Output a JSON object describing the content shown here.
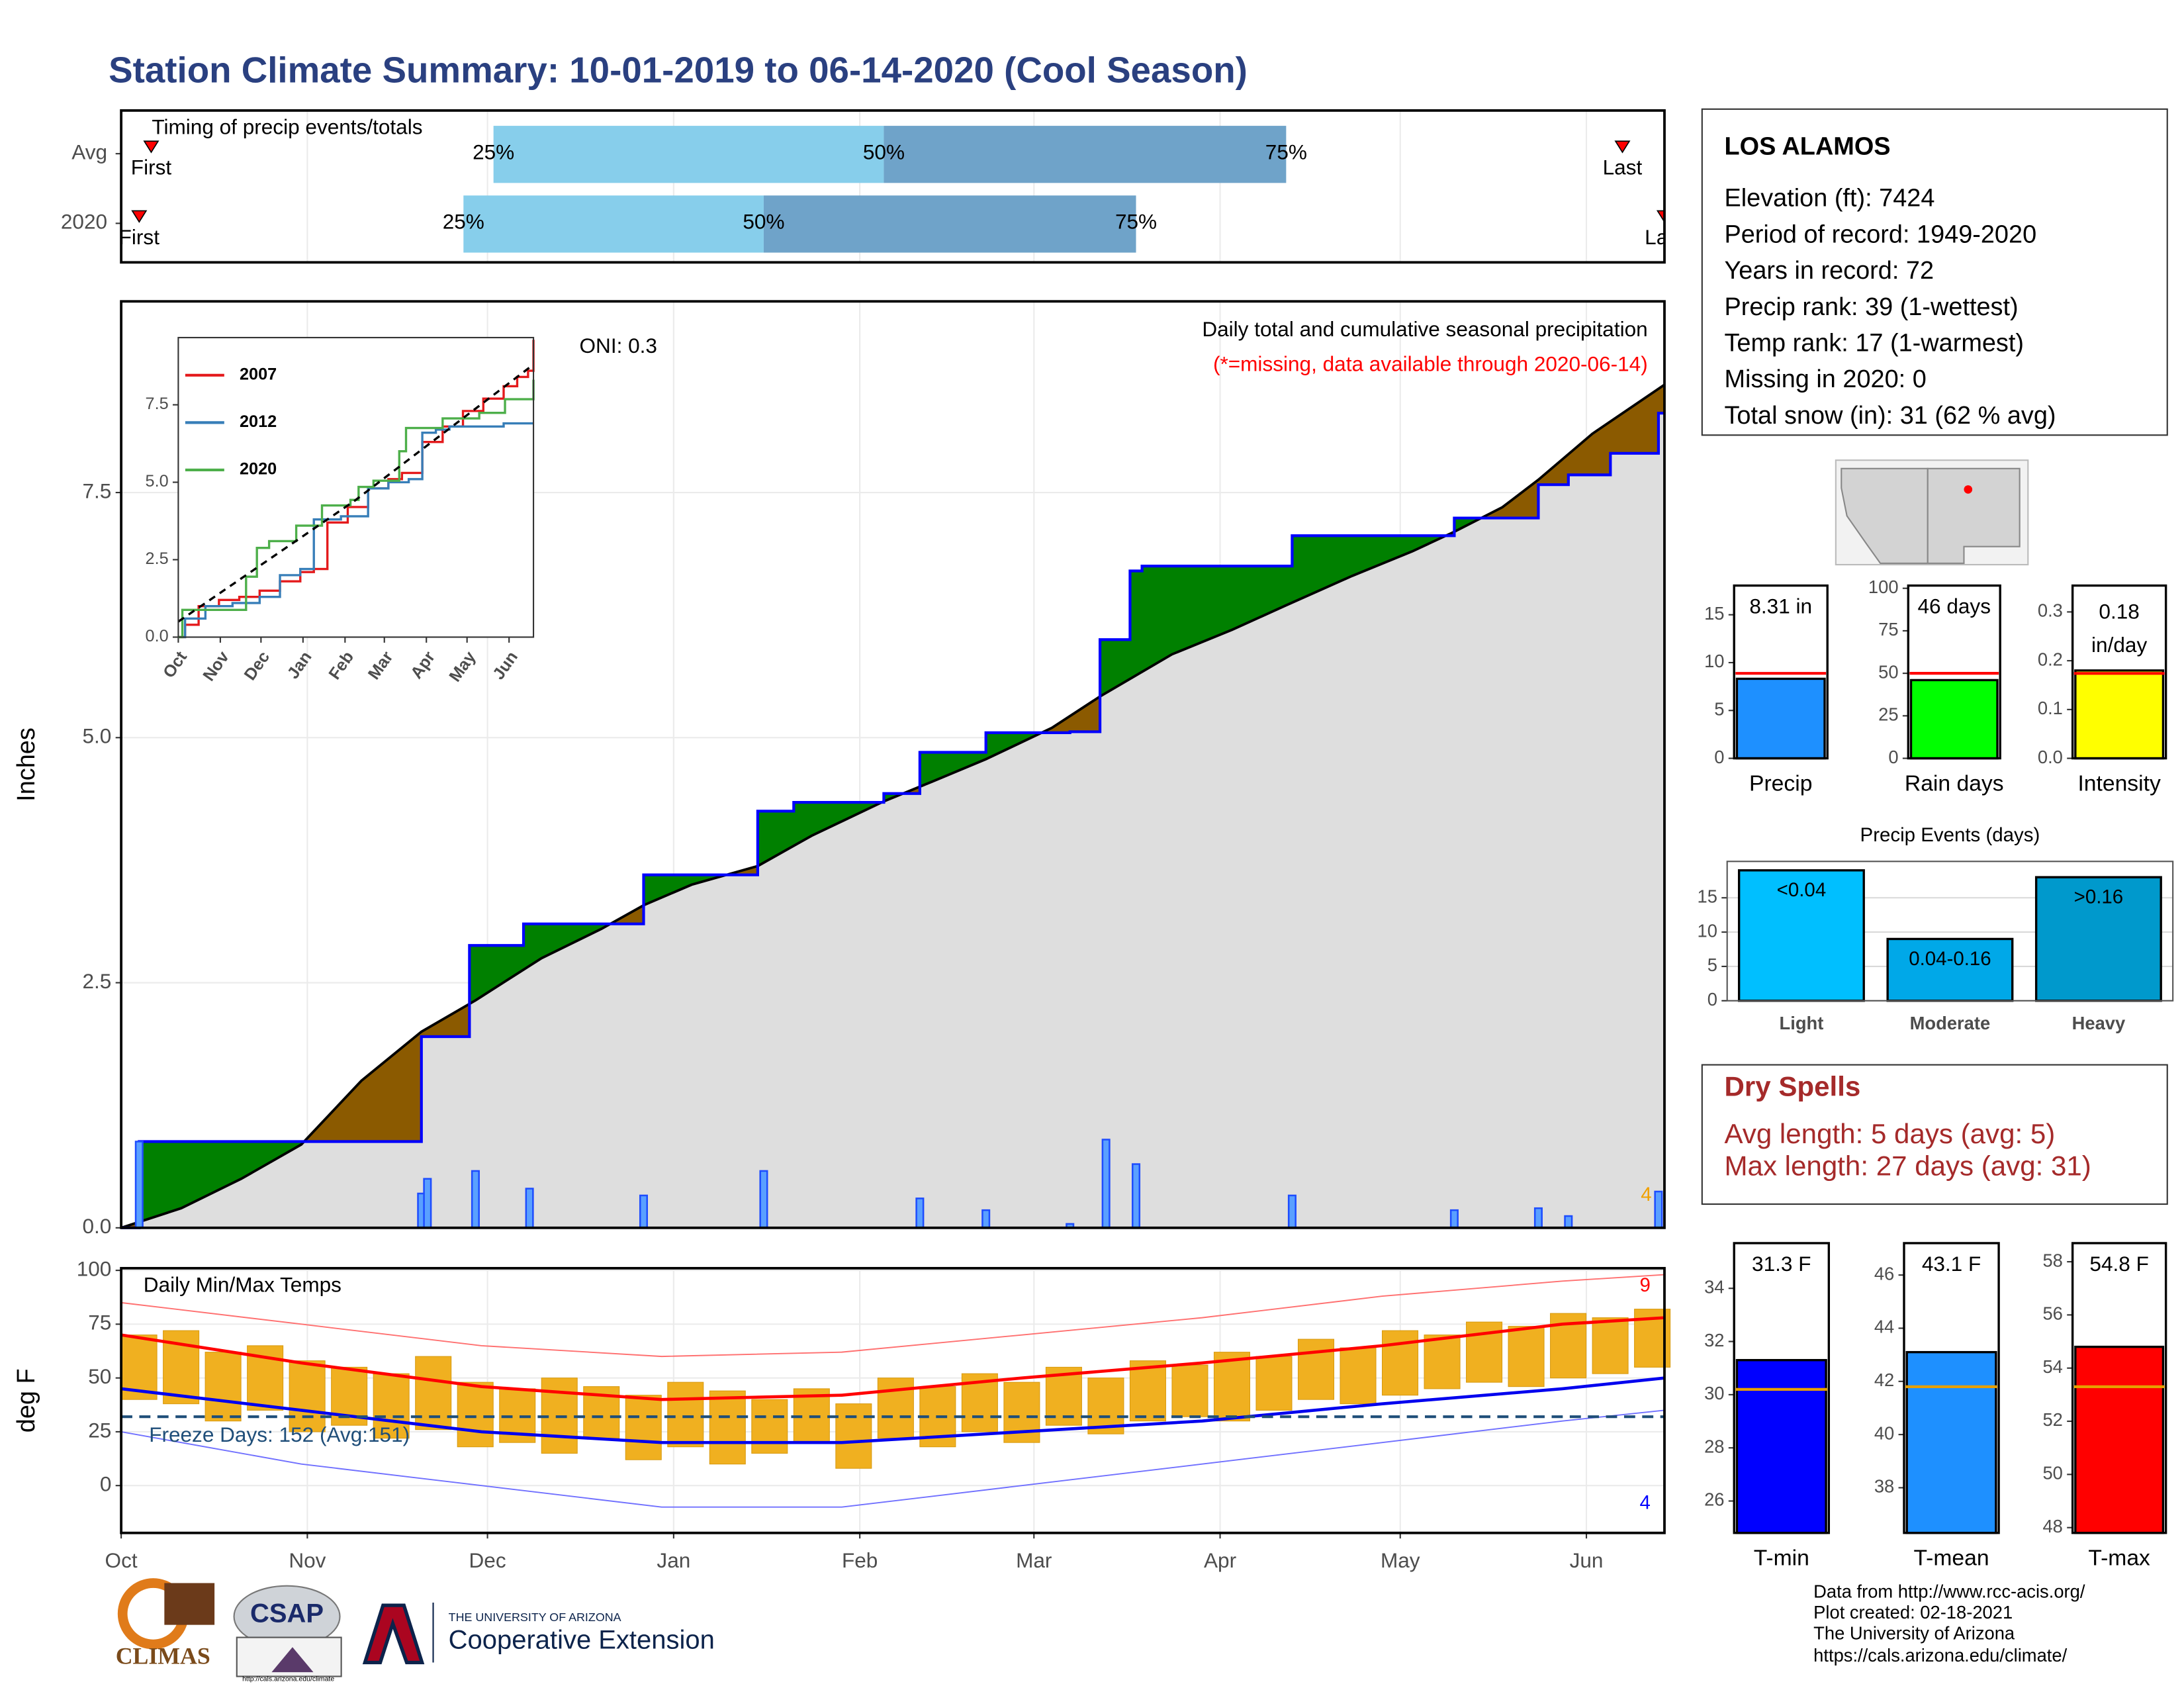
{
  "title": "Station Climate Summary: 10-01-2019 to 06-14-2020 (Cool Season)",
  "station": {
    "name": "LOS ALAMOS",
    "lines": [
      "Elevation (ft): 7424",
      "Period of record: 1949-2020",
      "Years in record: 72",
      "Precip rank: 39 (1-wettest)",
      "Temp rank: 17 (1-warmest)",
      "Missing in 2020: 0",
      "Total snow (in): 31 (62 % avg)"
    ]
  },
  "dry_spells": {
    "title": "Dry Spells",
    "lines": [
      "Avg length: 5 days (avg: 5)",
      "Max length: 27 days (avg: 31)"
    ]
  },
  "credits": [
    "Data from http://www.rcc-acis.org/",
    "Plot created: 02-18-2021",
    "The University of Arizona",
    "https://cals.arizona.edu/climate/"
  ],
  "logos": {
    "climas": "CLIMAS",
    "csap": "CSAP",
    "csap_url": "http://cals.arizona.edu/climate",
    "ua": "THE UNIVERSITY OF ARIZONA",
    "extension": "Cooperative Extension"
  },
  "chart_data": [
    {
      "type": "timeline",
      "title": "Timing of precip events/totals",
      "categories": [
        "Avg",
        "2020"
      ],
      "quantiles": [
        [
          62,
          127,
          194
        ],
        [
          57,
          107,
          169
        ]
      ],
      "quantile_labels": [
        "25%",
        "50%",
        "75%"
      ],
      "first": [
        5,
        3
      ],
      "last": [
        250,
        257
      ],
      "first_label": "First",
      "last_label": "Last",
      "colors": [
        "#87ceeb",
        "#6fa3c9"
      ],
      "marker_color": "#ff0000",
      "xlim": [
        0,
        257
      ]
    },
    {
      "type": "step",
      "title": "Daily total and cumulative seasonal precipitation",
      "subtitle": "(*=missing, data available through 2020-06-14)",
      "annotation": "ONI: 0.3",
      "y_label": "Inches",
      "xlim": [
        0,
        257
      ],
      "ylim": [
        0,
        9.45
      ],
      "yticks": [
        {
          "value": 0,
          "label": "0.0"
        },
        {
          "value": 2.5,
          "label": "2.5"
        },
        {
          "value": 5,
          "label": "5.0"
        },
        {
          "value": 7.5,
          "label": "7.5"
        }
      ],
      "grid": true,
      "series": [
        {
          "x": [
            0,
            3,
            50,
            58,
            67,
            87,
            106,
            112,
            127,
            133,
            144,
            158,
            163,
            168,
            170,
            195,
            222,
            236,
            241,
            248,
            256,
            257
          ],
          "values": [
            0,
            0.88,
            1.95,
            2.88,
            3.1,
            3.6,
            4.25,
            4.34,
            4.43,
            4.85,
            5.05,
            5.06,
            6.0,
            6.7,
            6.75,
            7.06,
            7.24,
            7.58,
            7.68,
            7.9,
            8.31,
            8.31
          ],
          "color": "#0000ff"
        },
        {
          "x": [
            0,
            10,
            20,
            30,
            40,
            50,
            59,
            70,
            80,
            87,
            95,
            106,
            115,
            127,
            135,
            144,
            155,
            163,
            175,
            185,
            194,
            205,
            215,
            222,
            230,
            236,
            245,
            257
          ],
          "values": [
            0,
            0.2,
            0.5,
            0.85,
            1.5,
            2.0,
            2.32,
            2.75,
            3.05,
            3.29,
            3.5,
            3.69,
            4.0,
            4.35,
            4.55,
            4.78,
            5.1,
            5.42,
            5.85,
            6.1,
            6.35,
            6.65,
            6.9,
            7.1,
            7.35,
            7.63,
            8.1,
            8.6
          ],
          "color": "#000000"
        }
      ],
      "above_color": "#008000",
      "below_color": "#8b5a00",
      "fill_color": "#dedede",
      "daily": {
        "x": [
          3,
          50,
          51,
          59,
          68,
          87,
          107,
          133,
          144,
          158,
          164,
          169,
          195,
          222,
          236,
          241,
          256
        ],
        "values": [
          0.88,
          0.35,
          0.5,
          0.58,
          0.4,
          0.33,
          0.58,
          0.3,
          0.18,
          0.04,
          0.9,
          0.65,
          0.33,
          0.18,
          0.2,
          0.12,
          0.37
        ],
        "color": "#1e4dff"
      },
      "end_note": {
        "text": "4",
        "color": "#f0a000"
      }
    },
    {
      "type": "line",
      "xlim": [
        0,
        262
      ],
      "ylim": [
        0,
        9.67
      ],
      "xticks": [
        {
          "value": 0,
          "label": "Oct"
        },
        {
          "value": 31,
          "label": "Nov"
        },
        {
          "value": 61,
          "label": "Dec"
        },
        {
          "value": 92,
          "label": "Jan"
        },
        {
          "value": 123,
          "label": "Feb"
        },
        {
          "value": 152,
          "label": "Mar"
        },
        {
          "value": 183,
          "label": "Apr"
        },
        {
          "value": 213,
          "label": "May"
        },
        {
          "value": 244,
          "label": "Jun"
        }
      ],
      "yticks": [
        {
          "value": 0,
          "label": "0.0"
        },
        {
          "value": 2.5,
          "label": "2.5"
        },
        {
          "value": 5,
          "label": "5.0"
        },
        {
          "value": 7.5,
          "label": "7.5"
        }
      ],
      "series": [
        {
          "name": "2007",
          "color": "#e41a1c",
          "x": [
            0,
            5,
            15,
            30,
            45,
            60,
            75,
            90,
            100,
            110,
            125,
            140,
            155,
            165,
            180,
            195,
            210,
            225,
            240,
            250,
            258,
            262
          ],
          "values": [
            0,
            0.4,
            1.0,
            1.2,
            1.3,
            1.5,
            1.8,
            2.1,
            2.2,
            3.7,
            4.2,
            4.8,
            5.1,
            5.3,
            6.3,
            6.8,
            7.3,
            7.7,
            8.1,
            8.4,
            8.6,
            9.6
          ]
        },
        {
          "name": "2012",
          "color": "#377eb8",
          "x": [
            0,
            5,
            20,
            40,
            60,
            75,
            90,
            100,
            120,
            140,
            155,
            170,
            180,
            190,
            200,
            210,
            225,
            240,
            262
          ],
          "values": [
            0,
            0.6,
            1.0,
            1.1,
            1.3,
            2.0,
            2.2,
            3.8,
            3.9,
            4.8,
            5.0,
            5.1,
            6.6,
            6.7,
            6.8,
            6.8,
            6.8,
            6.9,
            6.9
          ]
        },
        {
          "name": "2020",
          "color": "#4daf4a",
          "x": [
            0,
            3,
            50,
            58,
            67,
            87,
            106,
            127,
            133,
            144,
            163,
            168,
            195,
            222,
            241,
            262
          ],
          "values": [
            0,
            0.88,
            1.95,
            2.88,
            3.1,
            3.6,
            4.25,
            4.43,
            4.85,
            5.05,
            6.0,
            6.75,
            7.06,
            7.24,
            7.68,
            8.31
          ]
        },
        {
          "color": "#000000",
          "dash": true,
          "x": [
            0,
            130,
            262
          ],
          "values": [
            0.5,
            4.4,
            8.8
          ]
        }
      ]
    },
    {
      "type": "range",
      "title": "Daily Min/Max Temps",
      "y_label": "deg F",
      "xlim": [
        0,
        257
      ],
      "ylim": [
        -22,
        101
      ],
      "xticks": [
        {
          "value": 0,
          "label": "Oct"
        },
        {
          "value": 31,
          "label": "Nov"
        },
        {
          "value": 61,
          "label": "Dec"
        },
        {
          "value": 92,
          "label": "Jan"
        },
        {
          "value": 123,
          "label": "Feb"
        },
        {
          "value": 152,
          "label": "Mar"
        },
        {
          "value": 183,
          "label": "Apr"
        },
        {
          "value": 213,
          "label": "May"
        },
        {
          "value": 244,
          "label": "Jun"
        }
      ],
      "yticks": [
        0,
        25,
        50,
        75,
        100
      ],
      "grid": true,
      "daily": {
        "x": [
          0,
          7,
          14,
          21,
          28,
          35,
          42,
          49,
          56,
          63,
          70,
          77,
          84,
          91,
          98,
          105,
          112,
          119,
          126,
          133,
          140,
          147,
          154,
          161,
          168,
          175,
          182,
          189,
          196,
          203,
          210,
          217,
          224,
          231,
          238,
          245,
          252
        ],
        "high": [
          70,
          72,
          62,
          65,
          58,
          55,
          52,
          60,
          48,
          45,
          50,
          46,
          42,
          48,
          44,
          40,
          45,
          38,
          50,
          46,
          52,
          48,
          55,
          50,
          58,
          56,
          62,
          60,
          68,
          64,
          72,
          70,
          76,
          74,
          80,
          78,
          82
        ],
        "low": [
          40,
          38,
          30,
          35,
          25,
          28,
          22,
          26,
          18,
          20,
          15,
          22,
          12,
          18,
          10,
          15,
          20,
          8,
          22,
          18,
          25,
          20,
          28,
          24,
          30,
          32,
          30,
          35,
          40,
          38,
          42,
          45,
          48,
          46,
          50,
          52,
          55
        ],
        "color": "#f0b020"
      },
      "normal_max": {
        "x": [
          0,
          30,
          60,
          90,
          120,
          150,
          180,
          210,
          240,
          257
        ],
        "values": [
          70,
          57,
          46,
          40,
          42,
          50,
          57,
          65,
          75,
          78
        ],
        "color": "#ff0000"
      },
      "normal_min": {
        "x": [
          0,
          30,
          60,
          90,
          120,
          150,
          180,
          210,
          240,
          257
        ],
        "values": [
          45,
          35,
          25,
          20,
          20,
          25,
          30,
          38,
          45,
          50
        ],
        "color": "#0000ee"
      },
      "record_max": {
        "x": [
          0,
          30,
          60,
          90,
          120,
          150,
          180,
          210,
          240,
          257
        ],
        "values": [
          85,
          75,
          65,
          60,
          62,
          70,
          78,
          88,
          95,
          98
        ],
        "color": "#ff7070"
      },
      "record_min": {
        "x": [
          0,
          30,
          60,
          90,
          120,
          150,
          180,
          210,
          240,
          257
        ],
        "values": [
          25,
          10,
          0,
          -10,
          -10,
          0,
          10,
          20,
          30,
          35
        ],
        "color": "#7070ff"
      },
      "freeze": {
        "value": 32,
        "label": "Freeze Days: 152 (Avg:151)",
        "color": "#1f4e79"
      },
      "notes": [
        {
          "text": "9",
          "color": "#ff0000"
        },
        {
          "text": "4",
          "color": "#0000ff"
        }
      ]
    },
    {
      "type": "bar",
      "categories": [
        "Precip"
      ],
      "values": [
        8.31
      ],
      "value_labels": [
        "8.31 in"
      ],
      "color": "#1e90ff",
      "reference": 8.88,
      "reference_color": "#ff0000",
      "ylim": [
        0,
        18.05
      ],
      "yticks": [
        0,
        5,
        10,
        15
      ]
    },
    {
      "type": "bar",
      "categories": [
        "Rain days"
      ],
      "values": [
        46
      ],
      "value_labels": [
        "46 days"
      ],
      "color": "#00ff00",
      "reference": 50,
      "reference_color": "#ff0000",
      "ylim": [
        0,
        101.6
      ],
      "yticks": [
        0,
        25,
        50,
        75,
        100
      ]
    },
    {
      "type": "bar",
      "categories": [
        "Intensity"
      ],
      "values": [
        0.18
      ],
      "value_labels": [
        "0.18 in/day"
      ],
      "color": "#ffff00",
      "reference": 0.174,
      "reference_color": "#ff0000",
      "ylim": [
        0,
        0.354
      ],
      "yticks": [
        {
          "value": 0,
          "label": "0.0"
        },
        {
          "value": 0.1,
          "label": "0.1"
        },
        {
          "value": 0.2,
          "label": "0.2"
        },
        {
          "value": 0.3,
          "label": "0.3"
        }
      ]
    },
    {
      "type": "bar",
      "title": "Precip Events (days)",
      "categories": [
        "Light",
        "Moderate",
        "Heavy"
      ],
      "values": [
        19,
        9,
        18
      ],
      "bar_labels": [
        "<0.04",
        "0.04-0.16",
        ">0.16"
      ],
      "colors": [
        "#00bfff",
        "#00a8e8",
        "#0099cc"
      ],
      "ylim": [
        0,
        20.3
      ],
      "yticks": [
        0,
        5,
        10,
        15
      ],
      "grid": true
    },
    {
      "type": "bar",
      "categories": [
        "T-min"
      ],
      "values": [
        31.3
      ],
      "value_labels": [
        "31.3 F"
      ],
      "color": "#0000ff",
      "reference": 30.2,
      "reference_color": "#e69f00",
      "ylim": [
        24.8,
        35.7
      ],
      "yticks": [
        26,
        28,
        30,
        32,
        34
      ]
    },
    {
      "type": "bar",
      "categories": [
        "T-mean"
      ],
      "values": [
        43.1
      ],
      "value_labels": [
        "43.1 F"
      ],
      "color": "#1e90ff",
      "reference": 41.8,
      "reference_color": "#e69f00",
      "ylim": [
        36.3,
        47.2
      ],
      "yticks": [
        38,
        40,
        42,
        44,
        46
      ]
    },
    {
      "type": "bar",
      "categories": [
        "T-max"
      ],
      "values": [
        54.8
      ],
      "value_labels": [
        "54.8 F"
      ],
      "color": "#ff0000",
      "reference": 53.3,
      "reference_color": "#e69f00",
      "ylim": [
        47.8,
        58.7
      ],
      "yticks": [
        48,
        50,
        52,
        54,
        56,
        58
      ]
    }
  ]
}
